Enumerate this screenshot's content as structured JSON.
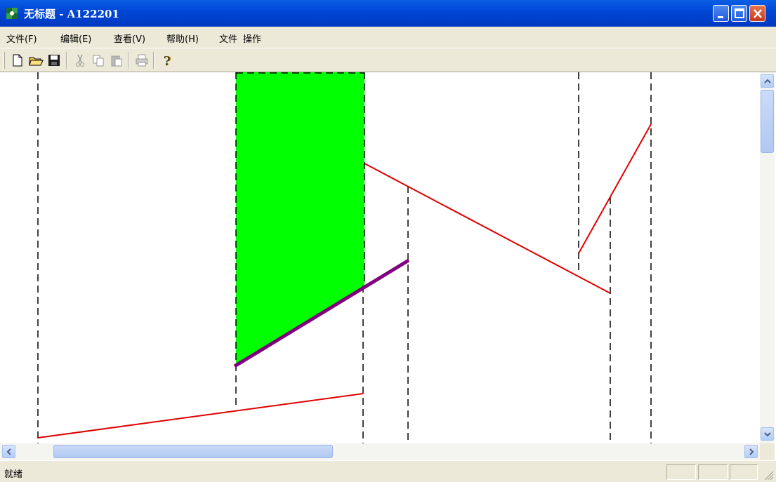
{
  "window": {
    "title": "无标题 - A122201",
    "app_icon": "mfc-app-icon",
    "controls": [
      "minimize-icon",
      "maximize-icon",
      "close-icon"
    ]
  },
  "menu": {
    "items": [
      "文件(F)",
      "编辑(E)",
      "查看(V)",
      "帮助(H)",
      "文件",
      "操作"
    ]
  },
  "toolbar": {
    "buttons": [
      "new-file-icon",
      "open-folder-icon",
      "save-icon",
      "cut-icon",
      "copy-icon",
      "paste-icon",
      "print-icon",
      "help-icon"
    ]
  },
  "status": {
    "text": "就绪"
  },
  "colors": {
    "fill_region": "#00ff00",
    "red_line": "#e00000",
    "purple_line": "#800080",
    "dashed_line": "#000000",
    "titlebar": "#0047d6",
    "chrome": "#ece9d8"
  }
}
